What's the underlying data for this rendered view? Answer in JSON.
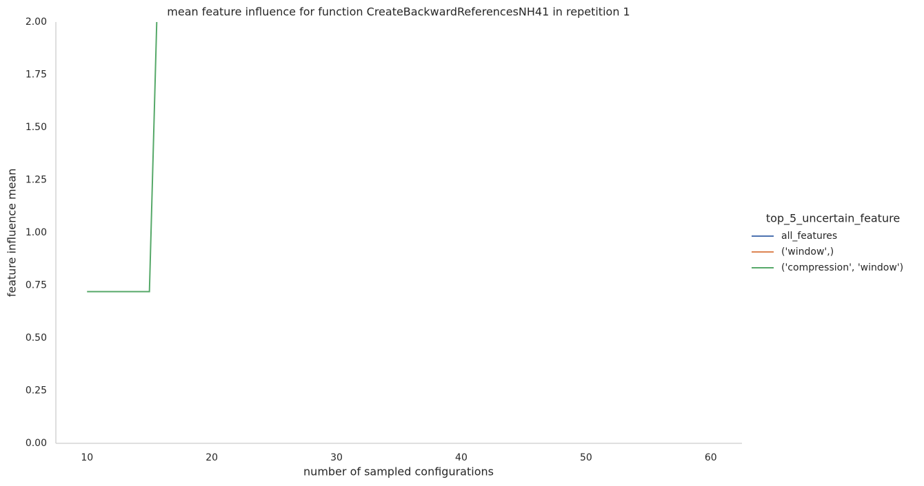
{
  "chart_data": {
    "type": "line",
    "title": "mean feature influence for function CreateBackwardReferencesNH41 in repetition 1",
    "x_label": "number of sampled configurations",
    "y_label": "feature influence mean",
    "legend_title": "top_5_uncertain_feature",
    "legend_position": "right",
    "x": [
      10,
      11,
      12,
      13,
      14,
      15,
      16
    ],
    "series": [
      {
        "name": "all_features",
        "color": "#4c72b0",
        "values": [
          null,
          null,
          null,
          null,
          null,
          null,
          null
        ]
      },
      {
        "name": "('window',)",
        "color": "#dd8452",
        "values": [
          null,
          null,
          null,
          null,
          null,
          null,
          null
        ]
      },
      {
        "name": "('compression', 'window')",
        "color": "#55a868",
        "values": [
          0.72,
          0.72,
          0.72,
          0.72,
          0.72,
          0.72,
          2.9
        ]
      }
    ],
    "xlim": [
      7.5,
      62.5
    ],
    "xticks": [
      10,
      20,
      30,
      40,
      50,
      60
    ],
    "ylim": [
      0,
      2
    ],
    "yticks": [
      {
        "value": 0,
        "label": "0.00"
      },
      0.25,
      {
        "value": 0.5,
        "label": "0.50"
      },
      0.75,
      {
        "value": 1,
        "label": "1.00"
      },
      1.25,
      {
        "value": 1.5,
        "label": "1.50"
      },
      1.75,
      {
        "value": 2,
        "label": "2.00"
      }
    ],
    "grid": false
  }
}
